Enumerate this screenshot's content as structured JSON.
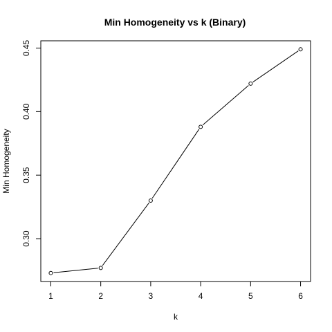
{
  "chart_data": {
    "type": "line",
    "title": "Min Homogeneity vs k (Binary)",
    "xlabel": "k",
    "ylabel": "Min Homogeneity",
    "x": [
      1,
      2,
      3,
      4,
      5,
      6
    ],
    "series": [
      {
        "values": [
          0.273,
          0.277,
          0.33,
          0.388,
          0.422,
          0.449
        ]
      }
    ],
    "xticks": [
      1,
      2,
      3,
      4,
      5,
      6
    ],
    "xtick_labels": [
      "1",
      "2",
      "3",
      "4",
      "5",
      "6"
    ],
    "yticks": [
      0.3,
      0.35,
      0.4,
      0.45
    ],
    "ytick_labels": [
      "0.30",
      "0.35",
      "0.40",
      "0.45"
    ],
    "xlim": [
      0.8,
      6.2
    ],
    "ylim": [
      0.2663,
      0.4557
    ],
    "grid": false,
    "marker": "open-circle",
    "line_color": "#000000"
  }
}
